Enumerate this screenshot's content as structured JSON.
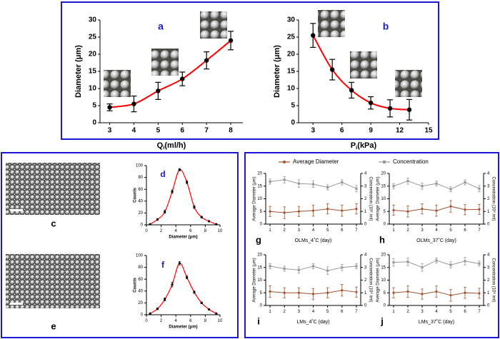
{
  "chart_data": [
    {
      "type": "scatter",
      "label": "a",
      "x_label": [
        "Q",
        "i",
        "(ml/h)"
      ],
      "y_label": "Diameter (μm)",
      "x": [
        3,
        4,
        5,
        6,
        7,
        8
      ],
      "values": [
        4.5,
        5.5,
        9.3,
        12.8,
        18.2,
        24
      ],
      "errors": [
        1,
        2.3,
        2.5,
        2,
        2.5,
        2.7
      ],
      "xlim": [
        2.6,
        8.5
      ],
      "xticks": [
        3,
        4,
        5,
        6,
        7,
        8
      ],
      "ylim": [
        0,
        30
      ],
      "yticks": [
        0,
        5,
        10,
        15,
        20,
        25,
        30
      ],
      "color": "#000000",
      "line_color": "#ff0000"
    },
    {
      "type": "scatter",
      "label": "b",
      "x_label": [
        "P",
        "i",
        "(kPa)"
      ],
      "y_label": "Diameter (μm)",
      "x": [
        3,
        5,
        7,
        9,
        11,
        13
      ],
      "values": [
        25.5,
        15.5,
        9.5,
        5.8,
        4.2,
        3.8
      ],
      "errors": [
        3.5,
        3,
        2.3,
        1.8,
        2.5,
        3
      ],
      "xlim": [
        1.5,
        15
      ],
      "xticks": [
        3,
        6,
        9,
        12,
        15
      ],
      "ylim": [
        0,
        30
      ],
      "yticks": [
        0,
        5,
        10,
        15,
        20,
        25,
        30
      ],
      "color": "#000000",
      "line_color": "#ff0000"
    },
    {
      "type": "scatter",
      "label": "d",
      "x_label": "Diameter (μm)",
      "y_label": "Counts",
      "x": [
        0.5,
        1.5,
        2.5,
        3.5,
        4.5,
        5.5,
        6.5,
        7.5,
        8.5,
        9.5
      ],
      "values": [
        1,
        9,
        22,
        56,
        93,
        72,
        30,
        13,
        6,
        1
      ],
      "errors": [
        1,
        1.5,
        2.5,
        3,
        2,
        2.5,
        2.5,
        1.5,
        1,
        0.5
      ],
      "xlim": [
        0,
        10
      ],
      "xticks": [
        0,
        2,
        4,
        6,
        8,
        10
      ],
      "ylim": [
        0,
        100
      ],
      "yticks": [
        0,
        20,
        40,
        60,
        80,
        100
      ],
      "color": "#000000",
      "line_color": "#ff0000"
    },
    {
      "type": "scatter",
      "label": "f",
      "x_label": "Diameter (μm)",
      "y_label": "Counts",
      "x": [
        0.5,
        1.5,
        2.5,
        3.5,
        4.5,
        5.5,
        6.5,
        7.5,
        8.5,
        9.5
      ],
      "values": [
        2,
        10,
        26,
        51,
        87,
        63,
        38,
        20,
        9,
        2
      ],
      "errors": [
        1,
        1.5,
        2.5,
        4,
        3,
        2.5,
        2,
        1.5,
        1,
        0.5
      ],
      "xlim": [
        0,
        10
      ],
      "xticks": [
        0,
        2,
        4,
        6,
        8,
        10
      ],
      "ylim": [
        0,
        100
      ],
      "yticks": [
        0,
        20,
        40,
        60,
        80,
        100
      ],
      "color": "#000000",
      "line_color": "#ff0000"
    },
    {
      "type": "line",
      "label": "g",
      "x_label": "OLMs_4˚C (day)",
      "y_label": "Average Diameter (μm)",
      "y2_label": "Concentration (10⁸ /ml)",
      "x": [
        1,
        2,
        3,
        4,
        5,
        6,
        7
      ],
      "xlim": [
        0.7,
        7.3
      ],
      "xticks": [
        1,
        2,
        3,
        4,
        5,
        6,
        7
      ],
      "ylim": [
        0,
        20
      ],
      "yticks": [
        0,
        5,
        10,
        15,
        20
      ],
      "y2lim": [
        0,
        4
      ],
      "y2ticks": [
        0,
        1,
        2,
        3,
        4
      ],
      "legend": true,
      "series": [
        {
          "name": "Average Diameter",
          "color": "#a0522d",
          "values": [
            5,
            4.5,
            5,
            5.3,
            6,
            5.3,
            6
          ],
          "errors": [
            2,
            2.3,
            2,
            2.2,
            2,
            2.2,
            2
          ]
        },
        {
          "name": "Concentration",
          "color": "#999999",
          "axis": "y2",
          "values": [
            3.35,
            3.5,
            3.2,
            3.15,
            2.9,
            3.3,
            2.8
          ],
          "errors": [
            0.2,
            0.25,
            0.3,
            0.25,
            0.2,
            0.2,
            0.25
          ]
        }
      ]
    },
    {
      "type": "line",
      "label": "h",
      "x_label": "OLMs_37˚C (day)",
      "y_label": "Average Diameter (μm)",
      "y2_label": "Concentration (10⁸ /ml)",
      "x": [
        1,
        2,
        3,
        4,
        5,
        6,
        7
      ],
      "xlim": [
        0.7,
        7.3
      ],
      "xticks": [
        1,
        2,
        3,
        4,
        5,
        6,
        7
      ],
      "ylim": [
        0,
        20
      ],
      "yticks": [
        0,
        5,
        10,
        15,
        20
      ],
      "y2lim": [
        0,
        4
      ],
      "y2ticks": [
        0,
        1,
        2,
        3,
        4
      ],
      "series": [
        {
          "color": "#a0522d",
          "values": [
            5.5,
            5,
            6,
            5.3,
            7,
            5.7,
            5.8
          ],
          "errors": [
            2,
            2.2,
            2,
            2.2,
            2.3,
            2,
            2
          ]
        },
        {
          "color": "#999999",
          "axis": "y2",
          "values": [
            3,
            3.4,
            3,
            3.2,
            2.75,
            3.3,
            2.8
          ],
          "errors": [
            0.2,
            0.25,
            0.25,
            0.2,
            0.2,
            0.2,
            0.25
          ]
        }
      ]
    },
    {
      "type": "line",
      "label": "i",
      "x_label": "LMs_4˚C (day)",
      "y_label": "Average Diameter (μm)",
      "y2_label": "Concentration (10⁸ /ml)",
      "x": [
        1,
        2,
        3,
        4,
        5,
        6,
        7
      ],
      "xlim": [
        0.7,
        7.3
      ],
      "xticks": [
        1,
        2,
        3,
        4,
        5,
        6,
        7
      ],
      "ylim": [
        0,
        20
      ],
      "yticks": [
        0,
        5,
        10,
        15,
        20
      ],
      "y2lim": [
        0,
        4
      ],
      "y2ticks": [
        0,
        1,
        2,
        3,
        4
      ],
      "series": [
        {
          "color": "#a0522d",
          "values": [
            5.5,
            5,
            5,
            4.5,
            5,
            6,
            5.3
          ],
          "errors": [
            2.3,
            2,
            2,
            2.2,
            2,
            2.3,
            2
          ]
        },
        {
          "color": "#999999",
          "axis": "y2",
          "values": [
            3.1,
            2.9,
            2.8,
            3.1,
            2.75,
            3,
            3.1
          ],
          "errors": [
            0.2,
            0.2,
            0.25,
            0.2,
            0.3,
            0.25,
            0.2
          ]
        }
      ]
    },
    {
      "type": "line",
      "label": "j",
      "x_label": "LMs_37˚C (day)",
      "y_label": "Average Diameter (μm)",
      "y2_label": "Concentration (10⁸ /ml)",
      "x": [
        1,
        2,
        3,
        4,
        5,
        6,
        7
      ],
      "xlim": [
        0.7,
        7.3
      ],
      "xticks": [
        1,
        2,
        3,
        4,
        5,
        6,
        7
      ],
      "ylim": [
        0,
        20
      ],
      "yticks": [
        0,
        5,
        10,
        15,
        20
      ],
      "y2lim": [
        0,
        4
      ],
      "y2ticks": [
        0,
        1,
        2,
        3,
        4
      ],
      "series": [
        {
          "color": "#a0522d",
          "values": [
            5,
            5.5,
            4.5,
            5.5,
            4,
            5,
            4.8
          ],
          "errors": [
            2,
            2.3,
            2,
            2.2,
            2.3,
            2.2,
            2
          ]
        },
        {
          "color": "#999999",
          "axis": "y2",
          "values": [
            3.4,
            3.45,
            3,
            3.55,
            3.2,
            3.5,
            3.3
          ],
          "errors": [
            0.3,
            0.3,
            0.3,
            0.2,
            0.25,
            0.3,
            0.2
          ]
        }
      ]
    }
  ],
  "image_labels": [
    "c",
    "e"
  ]
}
